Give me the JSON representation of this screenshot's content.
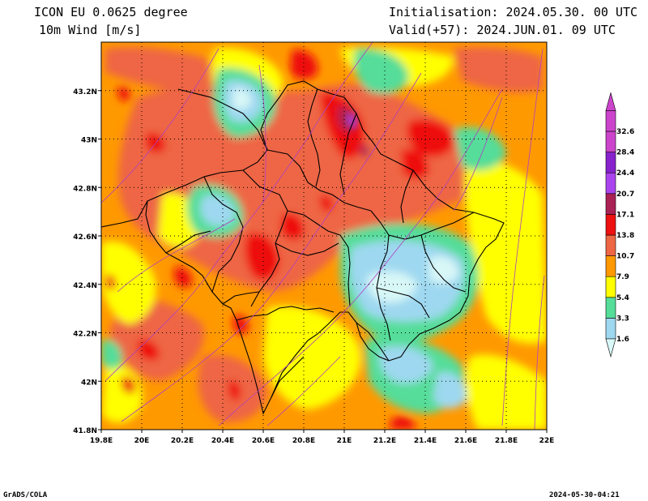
{
  "header": {
    "model": "ICON EU 0.0625 degree",
    "variable": "10m Wind [m/s]",
    "init": "Initialisation: 2024.05.30. 00 UTC",
    "valid": "Valid(+57): 2024.JUN.01. 09 UTC"
  },
  "footer": {
    "left": "GrADS/COLA",
    "right": "2024-05-30-04:21"
  },
  "map": {
    "lon_ticks": [
      "19.8E",
      "20E",
      "20.2E",
      "20.4E",
      "20.6E",
      "20.8E",
      "21E",
      "21.2E",
      "21.4E",
      "21.6E",
      "21.8E",
      "22E"
    ],
    "lat_ticks": [
      "43.2N",
      "43N",
      "42.8N",
      "42.6N",
      "42.4N",
      "42.2N",
      "42N",
      "41.8N"
    ],
    "lon_range": [
      19.8,
      22.0
    ],
    "lat_range": [
      41.8,
      43.4
    ],
    "grid": "dotted"
  },
  "colorbar": {
    "levels": [
      "1.6",
      "3.3",
      "5.4",
      "7.9",
      "10.7",
      "13.8",
      "17.1",
      "20.7",
      "24.4",
      "28.4",
      "32.6"
    ],
    "colors": [
      "#d8f7f7",
      "#9ed8f0",
      "#55dd99",
      "#ffff00",
      "#ff9900",
      "#ee6644",
      "#ee1111",
      "#aa2255",
      "#aa44ee",
      "#8822cc",
      "#cc44cc"
    ],
    "palette": {
      "c1": "#d8f7f7",
      "c2": "#9ed8f0",
      "c3": "#55dd99",
      "c4": "#ffff00",
      "c5": "#ff9900",
      "c6": "#ee6644",
      "c7": "#ee1111",
      "c8": "#aa2255"
    }
  }
}
